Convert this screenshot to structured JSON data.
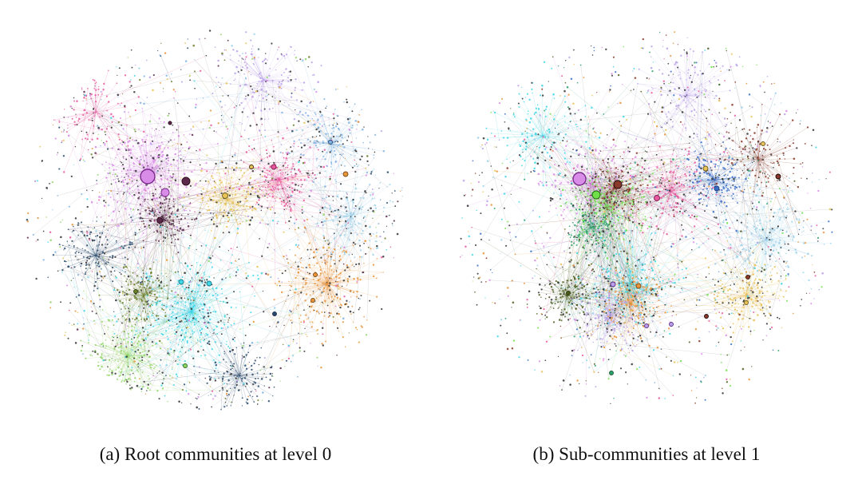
{
  "figure": {
    "panels": [
      {
        "caption": "(a) Root communities at level 0",
        "palette": [
          "#d98be8",
          "#3fd6e6",
          "#e8943a",
          "#8fd463",
          "#e85aa0",
          "#7fb2e0",
          "#5b2a4a",
          "#6b7f2a",
          "#2a4a6b",
          "#b9a0e8",
          "#e8c35a",
          "#9ad0e8"
        ]
      },
      {
        "caption": "(b) Sub-communities at level 1",
        "palette": [
          "#d98be8",
          "#6fe04a",
          "#3a6ec4",
          "#e85aa0",
          "#e8c35a",
          "#3fd6e6",
          "#e8943a",
          "#8a3a2a",
          "#4a5a1a",
          "#b9a0e8",
          "#9ad0e8",
          "#2aa06b"
        ]
      }
    ]
  }
}
